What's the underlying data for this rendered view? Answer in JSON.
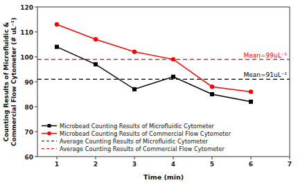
{
  "chart_data": {
    "type": "line",
    "x": [
      1,
      2,
      3,
      4,
      5,
      6
    ],
    "series": [
      {
        "name": "Microbead Counting Results of Microfluidic Cytometer",
        "color": "#000000",
        "marker": "square",
        "line_style": "solid",
        "values": [
          104,
          97,
          87,
          92,
          85,
          82
        ]
      },
      {
        "name": "Microbead Counting Results of Commercial Flow Cytometer",
        "color": "#FF0000",
        "marker": "circle",
        "line_style": "solid",
        "values": [
          113,
          107,
          102,
          99,
          88,
          86
        ]
      }
    ],
    "mean_lines": [
      {
        "name": "Average Counting Results of Microfluidic Cytometer",
        "color": "#000000",
        "line_style": "dashed",
        "value": 91,
        "label": "Mean=91uL⁻¹"
      },
      {
        "name": "Average Counting Results of Commercial Flow Cytometer",
        "color": "#FF0000",
        "line_style": "dashed",
        "value": 99,
        "label": "Mean=99uL⁻¹"
      }
    ],
    "xlabel": "Time (min)",
    "ylabel": "Counting Results of Microfluidic &\nCommercial Flow Cytometer (# uL⁻¹)",
    "xlim": [
      0.5,
      7
    ],
    "ylim": [
      60,
      120
    ],
    "xticks": [
      1,
      2,
      3,
      4,
      5,
      6,
      7
    ],
    "yticks": [
      60,
      70,
      80,
      90,
      100,
      110,
      120
    ],
    "grid": false,
    "legend": "lower left"
  }
}
